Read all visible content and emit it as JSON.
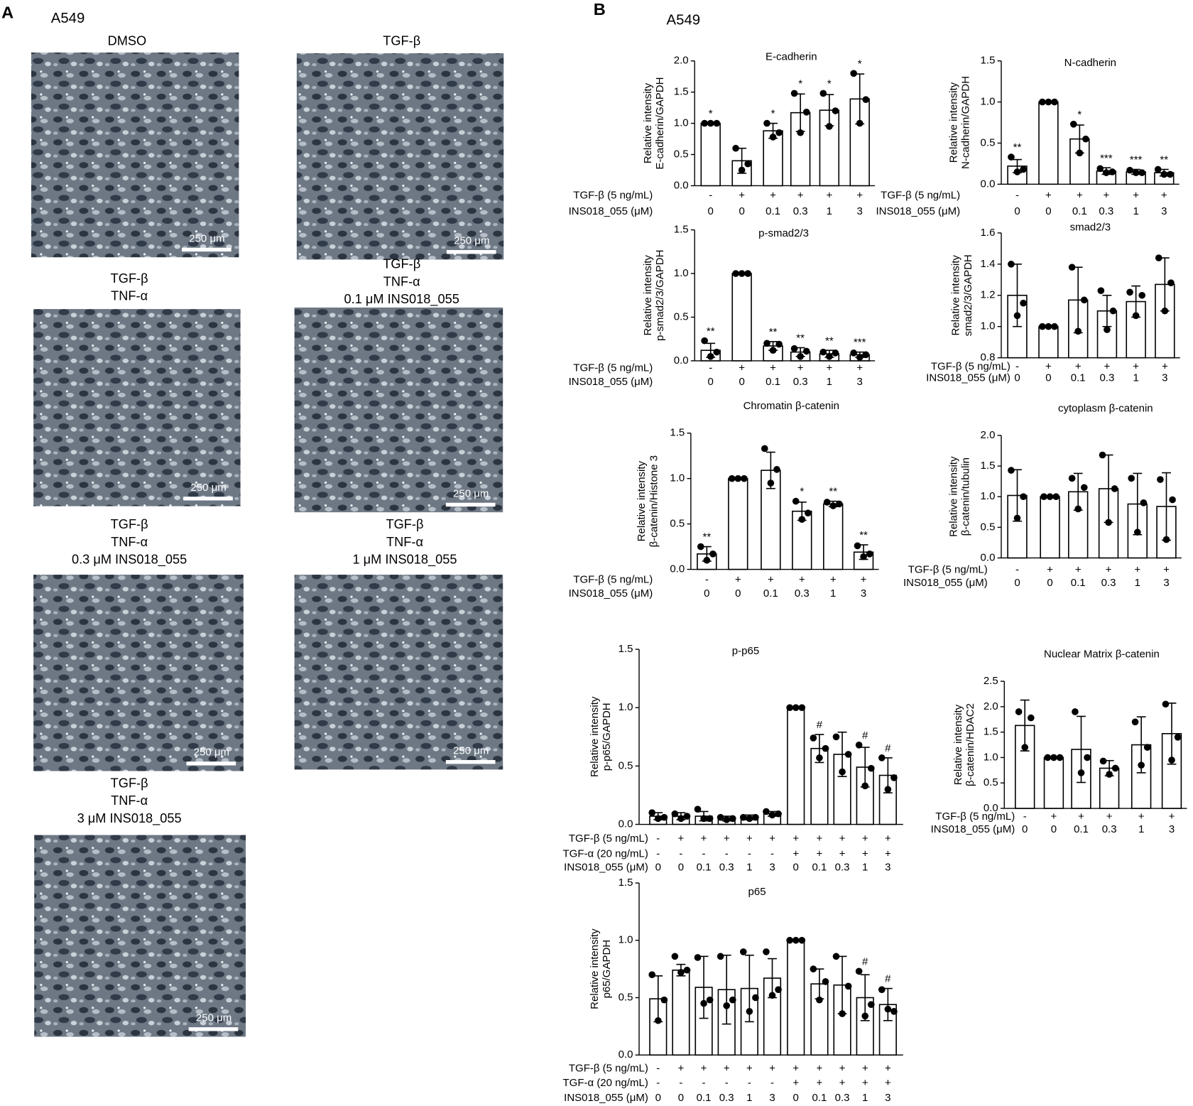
{
  "panel_a": {
    "label": "A",
    "cell_line": "A549",
    "images": [
      {
        "caption": [
          "DMSO"
        ],
        "scale_bar": "250 μm"
      },
      {
        "caption": [
          "TGF-β"
        ],
        "scale_bar": "250 μm"
      },
      {
        "caption": [
          "TGF-β",
          "TNF-α"
        ],
        "scale_bar": "250 μm"
      },
      {
        "caption": [
          "TGF-β",
          "TNF-α",
          "0.1 μM INS018_055"
        ],
        "scale_bar": "250 μm"
      },
      {
        "caption": [
          "TGF-β",
          "TNF-α",
          "0.3 μM INS018_055"
        ],
        "scale_bar": "250 μm"
      },
      {
        "caption": [
          "TGF-β",
          "TNF-α",
          "1 μM INS018_055"
        ],
        "scale_bar": "250 μm"
      },
      {
        "caption": [
          "TGF-β",
          "TNF-α",
          "3 μM INS018_055"
        ],
        "scale_bar": "250 μm"
      }
    ]
  },
  "panel_b": {
    "label": "B",
    "cell_line": "A549"
  },
  "chart_data": [
    {
      "type": "bar",
      "title": "E-cadherin",
      "ylabel": [
        "Relative intensity",
        "E-cadherin/GAPDH"
      ],
      "conditions": [
        {
          "label": "TGF-β (5 ng/mL)",
          "values": [
            "-",
            "+",
            "+",
            "+",
            "+",
            "+"
          ]
        }
      ],
      "category_label": "INS018_055 (μM)",
      "categories": [
        "0",
        "0",
        "0.1",
        "0.3",
        "1",
        "3"
      ],
      "values": [
        1.0,
        0.4,
        0.88,
        1.17,
        1.21,
        1.39
      ],
      "errors": [
        0,
        0.2,
        0.12,
        0.3,
        0.25,
        0.4
      ],
      "points": [
        [
          1,
          1,
          1
        ],
        [
          0.6,
          0.25,
          0.35
        ],
        [
          1.0,
          0.78,
          0.85
        ],
        [
          1.48,
          0.85,
          1.18
        ],
        [
          1.48,
          0.95,
          1.2
        ],
        [
          1.8,
          1.0,
          1.38
        ]
      ],
      "annotations": [
        "*",
        null,
        "*",
        "*",
        "*",
        "*"
      ],
      "ylim": [
        0,
        2
      ],
      "yticks": [
        {
          "value": 0,
          "label": "0.0"
        },
        0.5,
        {
          "value": 1,
          "label": "1.0"
        },
        1.5,
        {
          "value": 2,
          "label": "2.0"
        }
      ]
    },
    {
      "type": "bar",
      "title": "N-cadherin",
      "ylabel": [
        "Relative intensity",
        "N-cadherin/GAPDH"
      ],
      "conditions": [
        {
          "label": "TGF-β (5 ng/mL)",
          "values": [
            "-",
            "+",
            "+",
            "+",
            "+",
            "+"
          ]
        }
      ],
      "category_label": "INS018_055 (μM)",
      "categories": [
        "0",
        "0",
        "0.1",
        "0.3",
        "1",
        "3"
      ],
      "values": [
        0.22,
        1.0,
        0.55,
        0.16,
        0.15,
        0.14
      ],
      "errors": [
        0.08,
        0,
        0.17,
        0.04,
        0.03,
        0.04
      ],
      "points": [
        [
          0.33,
          0.15,
          0.18
        ],
        [
          1,
          1,
          1
        ],
        [
          0.73,
          0.38,
          0.55
        ],
        [
          0.19,
          0.14,
          0.15
        ],
        [
          0.17,
          0.14,
          0.14
        ],
        [
          0.18,
          0.12,
          0.12
        ]
      ],
      "annotations": [
        "**",
        null,
        "*",
        "***",
        "***",
        "**"
      ],
      "ylim": [
        0,
        1.5
      ],
      "yticks": [
        {
          "value": 0,
          "label": "0.0"
        },
        0.5,
        {
          "value": 1,
          "label": "1.0"
        },
        1.5
      ]
    },
    {
      "type": "bar",
      "title": "p-smad2/3",
      "ylabel": [
        "Relative intensity",
        "p-smad2/3/GAPDH"
      ],
      "conditions": [
        {
          "label": "TGF-β (5 ng/mL)",
          "values": [
            "-",
            "+",
            "+",
            "+",
            "+",
            "+"
          ]
        }
      ],
      "category_label": "INS018_055 (μM)",
      "categories": [
        "0",
        "0",
        "0.1",
        "0.3",
        "1",
        "3"
      ],
      "values": [
        0.12,
        1.0,
        0.17,
        0.1,
        0.08,
        0.07
      ],
      "errors": [
        0.08,
        0,
        0.05,
        0.05,
        0.04,
        0.03
      ],
      "points": [
        [
          0.23,
          0.05,
          0.1
        ],
        [
          1,
          1,
          1
        ],
        [
          0.2,
          0.12,
          0.19
        ],
        [
          0.14,
          0.05,
          0.11
        ],
        [
          0.1,
          0.05,
          0.09
        ],
        [
          0.09,
          0.04,
          0.07
        ]
      ],
      "annotations": [
        "**",
        null,
        "**",
        "**",
        "**",
        "***"
      ],
      "ylim": [
        0,
        1.5
      ],
      "yticks": [
        {
          "value": 0,
          "label": "0.0"
        },
        0.5,
        {
          "value": 1,
          "label": "1.0"
        },
        1.5
      ]
    },
    {
      "type": "bar",
      "title": "smad2/3",
      "ylabel": [
        "Relative intensity",
        "smad2/3/GAPDH"
      ],
      "conditions": [
        {
          "label": "TGF-β (5 ng/mL)",
          "values": [
            "-",
            "+",
            "+",
            "+",
            "+",
            "+"
          ]
        }
      ],
      "category_label": "INS018_055 (μM)",
      "categories": [
        "0",
        "0",
        "0.1",
        "0.3",
        "1",
        "3"
      ],
      "values": [
        1.2,
        1.0,
        1.17,
        1.1,
        1.16,
        1.27
      ],
      "errors": [
        0.2,
        0,
        0.21,
        0.1,
        0.1,
        0.17
      ],
      "points": [
        [
          1.4,
          1.07,
          1.15
        ],
        [
          1,
          1,
          1
        ],
        [
          1.38,
          0.97,
          1.17
        ],
        [
          1.23,
          0.98,
          1.1
        ],
        [
          1.22,
          1.07,
          1.2
        ],
        [
          1.44,
          1.1,
          1.28
        ]
      ],
      "ylim": [
        0.8,
        1.6
      ],
      "yticks": [
        0.8,
        {
          "value": 1,
          "label": "1.0"
        },
        1.2,
        1.4,
        1.6
      ]
    },
    {
      "type": "bar",
      "title": "Chromatin β-catenin",
      "ylabel": [
        "Relative intensity",
        "β-catenin/Histone 3"
      ],
      "conditions": [
        {
          "label": "TGF-β (5 ng/mL)",
          "values": [
            "-",
            "+",
            "+",
            "+",
            "+",
            "+"
          ]
        }
      ],
      "category_label": "INS018_055 (μM)",
      "categories": [
        "0",
        "0",
        "0.1",
        "0.3",
        "1",
        "3"
      ],
      "values": [
        0.17,
        1.0,
        1.09,
        0.64,
        0.72,
        0.19
      ],
      "errors": [
        0.08,
        0,
        0.2,
        0.1,
        0.03,
        0.08
      ],
      "points": [
        [
          0.25,
          0.1,
          0.17
        ],
        [
          1,
          1,
          1
        ],
        [
          1.33,
          0.95,
          1.1
        ],
        [
          0.75,
          0.55,
          0.62
        ],
        [
          0.74,
          0.7,
          0.72
        ],
        [
          0.26,
          0.14,
          0.17
        ]
      ],
      "annotations": [
        "**",
        null,
        null,
        "*",
        "**",
        "**"
      ],
      "ylim": [
        0,
        1.5
      ],
      "yticks": [
        {
          "value": 0,
          "label": "0.0"
        },
        0.5,
        {
          "value": 1,
          "label": "1.0"
        },
        1.5
      ]
    },
    {
      "type": "bar",
      "title": "cytoplasm β-catenin",
      "ylabel": [
        "Relative intensity",
        "β-catenin/tubulin"
      ],
      "conditions": [
        {
          "label": "TGF-β (5 ng/mL)",
          "values": [
            "-",
            "+",
            "+",
            "+",
            "+",
            "+"
          ]
        }
      ],
      "category_label": "INS018_055 (μM)",
      "categories": [
        "0",
        "0",
        "0.1",
        "0.3",
        "1",
        "3"
      ],
      "values": [
        1.02,
        1.0,
        1.08,
        1.13,
        0.88,
        0.84
      ],
      "errors": [
        0.42,
        0,
        0.3,
        0.55,
        0.5,
        0.55
      ],
      "points": [
        [
          1.43,
          0.65,
          1.0
        ],
        [
          1,
          1,
          1
        ],
        [
          1.3,
          0.8,
          1.15
        ],
        [
          1.68,
          0.58,
          1.13
        ],
        [
          1.3,
          0.42,
          0.9
        ],
        [
          1.28,
          0.3,
          0.95
        ]
      ],
      "ylim": [
        0,
        2
      ],
      "yticks": [
        {
          "value": 0,
          "label": "0.0"
        },
        0.5,
        {
          "value": 1,
          "label": "1.0"
        },
        1.5,
        {
          "value": 2,
          "label": "2.0"
        }
      ]
    },
    {
      "type": "bar",
      "title": "p-p65",
      "ylabel": [
        "Relative intensity",
        "p-p65/GAPDH"
      ],
      "conditions": [
        {
          "label": "TGF-β (5 ng/mL)",
          "values": [
            "-",
            "+",
            "+",
            "+",
            "+",
            "+",
            "+",
            "+",
            "+",
            "+",
            "+"
          ]
        },
        {
          "label": "TGF-α (20 ng/mL)",
          "values": [
            "-",
            "-",
            "-",
            "-",
            "-",
            "-",
            "+",
            "+",
            "+",
            "+",
            "+"
          ]
        }
      ],
      "category_label": "INS018_055 (μM)",
      "categories": [
        "0",
        "0",
        "0.1",
        "0.3",
        "1",
        "3",
        "0",
        "0.1",
        "0.3",
        "1",
        "3"
      ],
      "values": [
        0.07,
        0.07,
        0.07,
        0.05,
        0.06,
        0.09,
        1.0,
        0.65,
        0.6,
        0.49,
        0.42
      ],
      "errors": [
        0.03,
        0.03,
        0.04,
        0.02,
        0.02,
        0.02,
        0,
        0.12,
        0.19,
        0.17,
        0.15
      ],
      "points": [
        [
          0.1,
          0.05,
          0.06
        ],
        [
          0.09,
          0.05,
          0.07
        ],
        [
          0.13,
          0.05,
          0.05
        ],
        [
          0.06,
          0.04,
          0.05
        ],
        [
          0.06,
          0.05,
          0.06
        ],
        [
          0.11,
          0.08,
          0.09
        ],
        [
          1,
          1,
          1
        ],
        [
          0.74,
          0.57,
          0.65
        ],
        [
          0.75,
          0.45,
          0.6
        ],
        [
          0.68,
          0.33,
          0.48
        ],
        [
          0.57,
          0.3,
          0.4
        ]
      ],
      "annotations": [
        null,
        null,
        null,
        null,
        null,
        null,
        null,
        "#",
        null,
        "#",
        "#"
      ],
      "ylim": [
        0,
        1.5
      ],
      "yticks": [
        {
          "value": 0,
          "label": "0.0"
        },
        0.5,
        {
          "value": 1,
          "label": "1.0"
        },
        1.5
      ]
    },
    {
      "type": "bar",
      "title": "Nuclear Matrix β-catenin",
      "ylabel": [
        "Relative intensity",
        "β-catenin/HDAC2"
      ],
      "conditions": [
        {
          "label": "TGF-β (5 ng/mL)",
          "values": [
            "-",
            "+",
            "+",
            "+",
            "+",
            "+"
          ]
        }
      ],
      "category_label": "INS018_055 (μM)",
      "categories": [
        "0",
        "0",
        "0.1",
        "0.3",
        "1",
        "3"
      ],
      "values": [
        1.63,
        1.0,
        1.16,
        0.79,
        1.25,
        1.47
      ],
      "errors": [
        0.5,
        0,
        0.65,
        0.15,
        0.55,
        0.6
      ],
      "points": [
        [
          1.9,
          1.2,
          1.78
        ],
        [
          1,
          1,
          1
        ],
        [
          1.9,
          0.7,
          1.0
        ],
        [
          0.93,
          0.67,
          0.79
        ],
        [
          1.7,
          0.85,
          1.2
        ],
        [
          2.05,
          0.95,
          1.4
        ]
      ],
      "ylim": [
        0,
        2.5
      ],
      "yticks": [
        {
          "value": 0,
          "label": "0.0"
        },
        0.5,
        {
          "value": 1,
          "label": "1.0"
        },
        1.5,
        {
          "value": 2,
          "label": "2.0"
        },
        2.5
      ]
    },
    {
      "type": "bar",
      "title": "p65",
      "ylabel": [
        "Relative intensity",
        "p65/GAPDH"
      ],
      "conditions": [
        {
          "label": "TGF-β (5 ng/mL)",
          "values": [
            "-",
            "+",
            "+",
            "+",
            "+",
            "+",
            "+",
            "+",
            "+",
            "+",
            "+"
          ]
        },
        {
          "label": "TGF-α (20 ng/mL)",
          "values": [
            "-",
            "-",
            "-",
            "-",
            "-",
            "-",
            "+",
            "+",
            "+",
            "+",
            "+"
          ]
        }
      ],
      "category_label": "INS018_055 (μM)",
      "categories": [
        "0",
        "0",
        "0.1",
        "0.3",
        "1",
        "3",
        "0",
        "0.1",
        "0.3",
        "1",
        "3"
      ],
      "values": [
        0.49,
        0.74,
        0.59,
        0.57,
        0.58,
        0.67,
        1.0,
        0.62,
        0.61,
        0.5,
        0.44
      ],
      "errors": [
        0.2,
        0.05,
        0.27,
        0.3,
        0.29,
        0.17,
        0,
        0.13,
        0.25,
        0.2,
        0.14
      ],
      "points": [
        [
          0.7,
          0.3,
          0.48
        ],
        [
          0.86,
          0.72,
          0.74
        ],
        [
          0.85,
          0.45,
          0.48
        ],
        [
          0.86,
          0.43,
          0.48
        ],
        [
          0.9,
          0.38,
          0.5
        ],
        [
          0.9,
          0.52,
          0.57
        ],
        [
          1,
          1,
          1
        ],
        [
          0.75,
          0.48,
          0.64
        ],
        [
          0.86,
          0.36,
          0.6
        ],
        [
          0.73,
          0.34,
          0.44
        ],
        [
          0.57,
          0.4,
          0.38
        ]
      ],
      "annotations": [
        null,
        null,
        null,
        null,
        null,
        null,
        null,
        null,
        null,
        "#",
        "#"
      ],
      "ylim": [
        0,
        1.5
      ],
      "yticks": [
        {
          "value": 0,
          "label": "0.0"
        },
        0.5,
        {
          "value": 1,
          "label": "1.0"
        },
        1.5
      ]
    }
  ]
}
